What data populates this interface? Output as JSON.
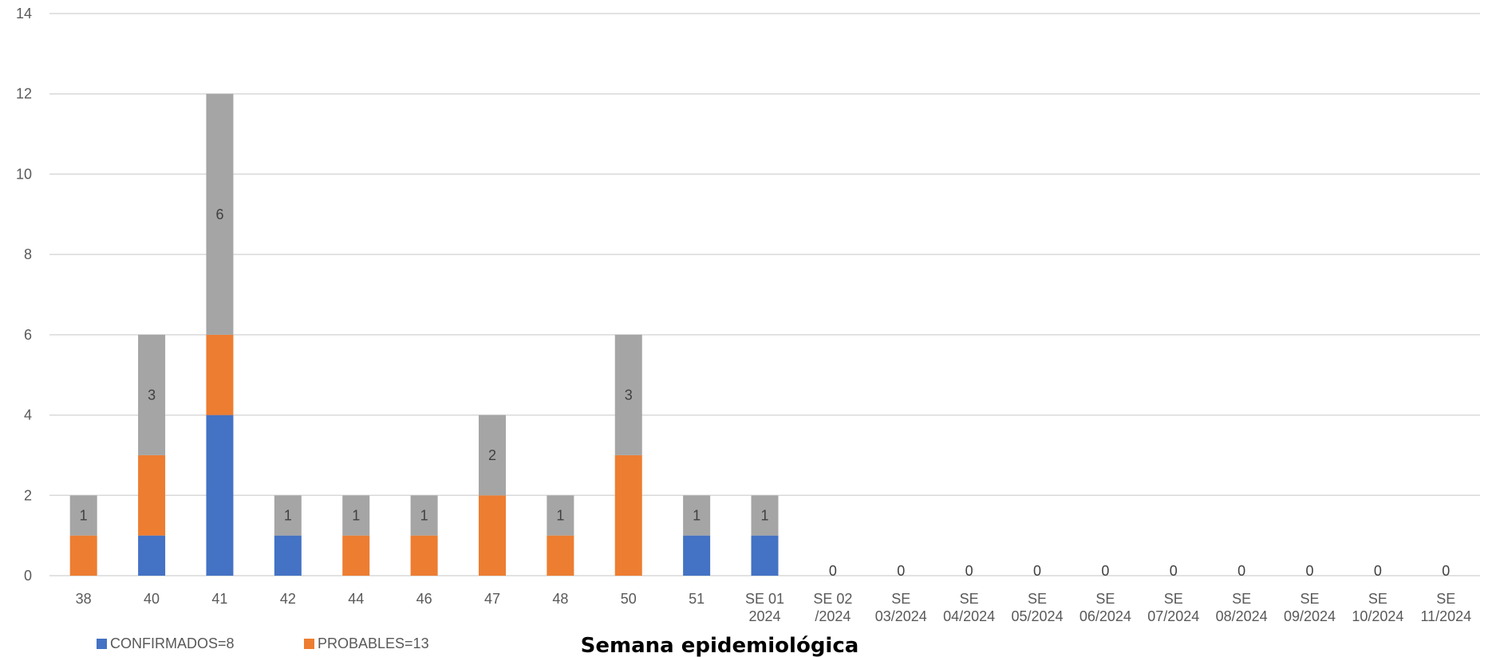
{
  "chart_data": {
    "type": "bar",
    "stacked": true,
    "xlabel": "Semana epidemiológica",
    "ylabel": "",
    "ylim": [
      0,
      14
    ],
    "yticks": [
      0,
      2,
      4,
      6,
      8,
      10,
      12,
      14
    ],
    "grid": true,
    "legend_position": "bottom-left",
    "categories": [
      [
        "38"
      ],
      [
        "40"
      ],
      [
        "41"
      ],
      [
        "42"
      ],
      [
        "44"
      ],
      [
        "46"
      ],
      [
        "47"
      ],
      [
        "48"
      ],
      [
        "50"
      ],
      [
        "51"
      ],
      [
        "SE 01",
        "2024"
      ],
      [
        "SE 02",
        "/2024"
      ],
      [
        "SE",
        "03/2024"
      ],
      [
        "SE",
        "04/2024"
      ],
      [
        "SE",
        "05/2024"
      ],
      [
        "SE",
        "06/2024"
      ],
      [
        "SE",
        "07/2024"
      ],
      [
        "SE",
        "08/2024"
      ],
      [
        "SE",
        "09/2024"
      ],
      [
        "SE",
        "10/2024"
      ],
      [
        "SE",
        "11/2024"
      ]
    ],
    "series": [
      {
        "name": "CONFIRMADOS=8",
        "color": "#4472C4",
        "values": [
          0,
          1,
          4,
          1,
          0,
          0,
          0,
          0,
          0,
          1,
          1,
          0,
          0,
          0,
          0,
          0,
          0,
          0,
          0,
          0,
          0
        ]
      },
      {
        "name": "PROBABLES=13",
        "color": "#ED7D31",
        "values": [
          1,
          2,
          2,
          0,
          1,
          1,
          2,
          1,
          3,
          0,
          0,
          0,
          0,
          0,
          0,
          0,
          0,
          0,
          0,
          0,
          0
        ]
      },
      {
        "color": "#A5A5A5",
        "values": [
          1,
          3,
          6,
          1,
          1,
          1,
          2,
          1,
          3,
          1,
          1,
          0,
          0,
          0,
          0,
          0,
          0,
          0,
          0,
          0,
          0
        ]
      }
    ],
    "top_series_labels": [
      "1",
      "3",
      "6",
      "1",
      "1",
      "1",
      "2",
      "1",
      "3",
      "1",
      "1",
      "0",
      "0",
      "0",
      "0",
      "0",
      "0",
      "0",
      "0",
      "0",
      "0"
    ]
  }
}
